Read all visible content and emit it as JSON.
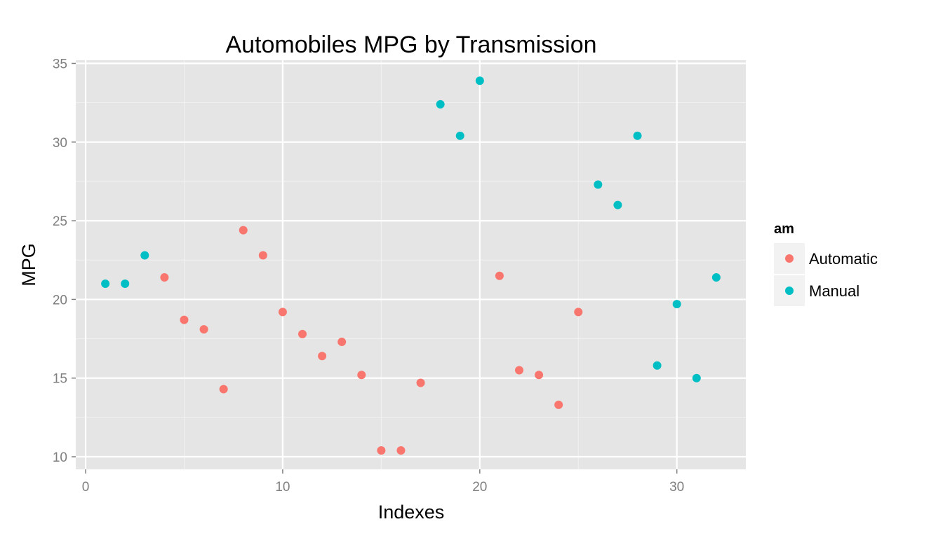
{
  "chart_data": {
    "type": "scatter",
    "title": "Automobiles MPG by Transmission",
    "xlabel": "Indexes",
    "ylabel": "MPG",
    "xlim": [
      -0.5,
      33.5
    ],
    "ylim": [
      9.2,
      35.2
    ],
    "x_ticks": [
      0,
      10,
      20,
      30
    ],
    "x_tick_labels": [
      "0",
      "10",
      "20",
      "30"
    ],
    "y_ticks": [
      10,
      15,
      20,
      25,
      30,
      35
    ],
    "y_tick_labels": [
      "10",
      "15",
      "20",
      "25",
      "30",
      "35"
    ],
    "grid": true,
    "legend": {
      "title": "am",
      "placement": "right"
    },
    "series": [
      {
        "name": "Automatic",
        "color": "#F8766D",
        "points": [
          {
            "x": 4,
            "y": 21.4
          },
          {
            "x": 5,
            "y": 18.7
          },
          {
            "x": 6,
            "y": 18.1
          },
          {
            "x": 7,
            "y": 14.3
          },
          {
            "x": 8,
            "y": 24.4
          },
          {
            "x": 9,
            "y": 22.8
          },
          {
            "x": 10,
            "y": 19.2
          },
          {
            "x": 11,
            "y": 17.8
          },
          {
            "x": 12,
            "y": 16.4
          },
          {
            "x": 13,
            "y": 17.3
          },
          {
            "x": 14,
            "y": 15.2
          },
          {
            "x": 15,
            "y": 10.4
          },
          {
            "x": 16,
            "y": 10.4
          },
          {
            "x": 17,
            "y": 14.7
          },
          {
            "x": 21,
            "y": 21.5
          },
          {
            "x": 22,
            "y": 15.5
          },
          {
            "x": 23,
            "y": 15.2
          },
          {
            "x": 24,
            "y": 13.3
          },
          {
            "x": 25,
            "y": 19.2
          }
        ]
      },
      {
        "name": "Manual",
        "color": "#00BFC4",
        "points": [
          {
            "x": 1,
            "y": 21.0
          },
          {
            "x": 2,
            "y": 21.0
          },
          {
            "x": 3,
            "y": 22.8
          },
          {
            "x": 18,
            "y": 32.4
          },
          {
            "x": 19,
            "y": 30.4
          },
          {
            "x": 20,
            "y": 33.9
          },
          {
            "x": 26,
            "y": 27.3
          },
          {
            "x": 27,
            "y": 26.0
          },
          {
            "x": 28,
            "y": 30.4
          },
          {
            "x": 29,
            "y": 15.8
          },
          {
            "x": 30,
            "y": 19.7
          },
          {
            "x": 31,
            "y": 15.0
          },
          {
            "x": 32,
            "y": 21.4
          }
        ]
      }
    ]
  }
}
